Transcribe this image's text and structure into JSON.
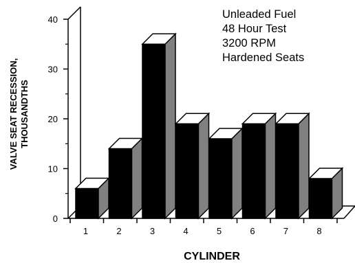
{
  "chart_data": {
    "type": "bar",
    "style": "3d",
    "categories": [
      "1",
      "2",
      "3",
      "4",
      "5",
      "6",
      "7",
      "8"
    ],
    "values": [
      6,
      14,
      35,
      19,
      16,
      19,
      19,
      8
    ],
    "xlabel": "CYLINDER",
    "ylabel_lines": [
      "VALVE SEAT RECESSION,",
      "THOUSANDTHS"
    ],
    "ylim": [
      0,
      40
    ],
    "yticks": [
      "0",
      "10",
      "20",
      "30",
      "40"
    ],
    "grid": false,
    "annotation": [
      "Unleaded Fuel",
      "48 Hour Test",
      "3200 RPM",
      "Hardened Seats"
    ],
    "annotation_placement": "top-right",
    "colors": {
      "front": "#000000",
      "side": "#808080",
      "top": "#ffffff"
    }
  }
}
